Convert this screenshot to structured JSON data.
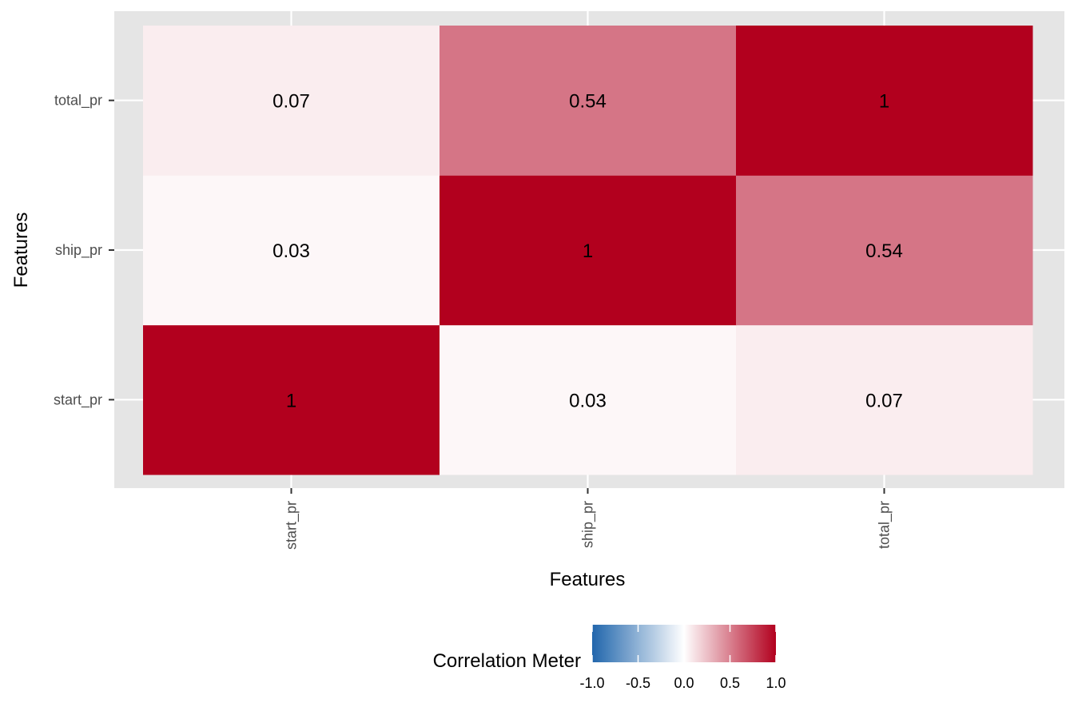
{
  "chart_data": {
    "type": "heatmap",
    "title": "",
    "xlabel": "Features",
    "ylabel": "Features",
    "x_categories": [
      "start_pr",
      "ship_pr",
      "total_pr"
    ],
    "y_categories": [
      "start_pr",
      "ship_pr",
      "total_pr"
    ],
    "values": [
      [
        1,
        0.03,
        0.07
      ],
      [
        0.03,
        1,
        0.54
      ],
      [
        0.07,
        0.54,
        1
      ]
    ],
    "cell_labels": [
      [
        "1",
        "0.03",
        "0.07"
      ],
      [
        "0.03",
        "1",
        "0.54"
      ],
      [
        "0.07",
        "0.54",
        "1"
      ]
    ],
    "color_scale": {
      "low": "#2166ac",
      "mid": "#ffffff",
      "high": "#b2001e",
      "limits": [
        -1,
        1
      ]
    },
    "legend": {
      "title": "Correlation Meter",
      "placement": "bottom",
      "ticks": [
        "-1.0",
        "-0.5",
        "0.0",
        "0.5",
        "1.0"
      ],
      "tick_values": [
        -1,
        -0.5,
        0,
        0.5,
        1
      ]
    },
    "panel_background": "#e5e5e5",
    "grid": true
  }
}
